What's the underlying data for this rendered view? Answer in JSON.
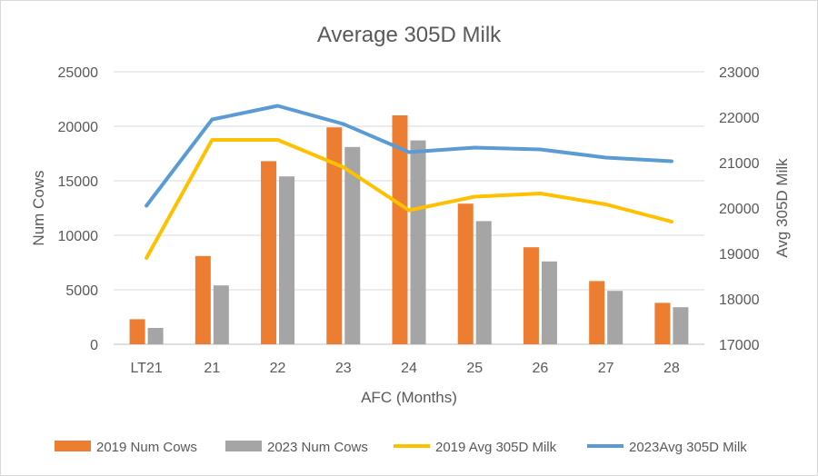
{
  "chart_data": {
    "type": "bar",
    "title": "Average 305D Milk",
    "categories": [
      "LT21",
      "21",
      "22",
      "23",
      "24",
      "25",
      "26",
      "27",
      "28"
    ],
    "xlabel": "AFC (Months)",
    "ylabel": "Num Cows",
    "y2label": "Avg 305D Milk",
    "ylim": [
      0,
      25000
    ],
    "y2lim": [
      17000,
      23000
    ],
    "yticks": [
      "0",
      "5000",
      "10000",
      "15000",
      "20000",
      "25000"
    ],
    "y2ticks": [
      "17000",
      "18000",
      "19000",
      "20000",
      "21000",
      "22000",
      "23000"
    ],
    "grid": true,
    "legend_position": "bottom",
    "series": [
      {
        "name": "2019 Num Cows",
        "type": "bar",
        "axis": "left",
        "color": "#ed7d31",
        "values": [
          2300,
          8100,
          16800,
          19900,
          21000,
          12900,
          8900,
          5800,
          3800
        ]
      },
      {
        "name": "2023 Num Cows",
        "type": "bar",
        "axis": "left",
        "color": "#a5a5a5",
        "values": [
          1500,
          5400,
          15400,
          18100,
          18700,
          11300,
          7600,
          4900,
          3400
        ]
      },
      {
        "name": "2019 Avg 305D Milk",
        "type": "line",
        "axis": "right",
        "color": "#ffc000",
        "values": [
          18900,
          21500,
          21500,
          20900,
          19950,
          20250,
          20320,
          20080,
          19700
        ]
      },
      {
        "name": "2023Avg 305D Milk",
        "type": "line",
        "axis": "right",
        "color": "#5b9bd5",
        "values": [
          20050,
          21950,
          22250,
          21850,
          21230,
          21330,
          21290,
          21110,
          21030
        ]
      }
    ]
  }
}
